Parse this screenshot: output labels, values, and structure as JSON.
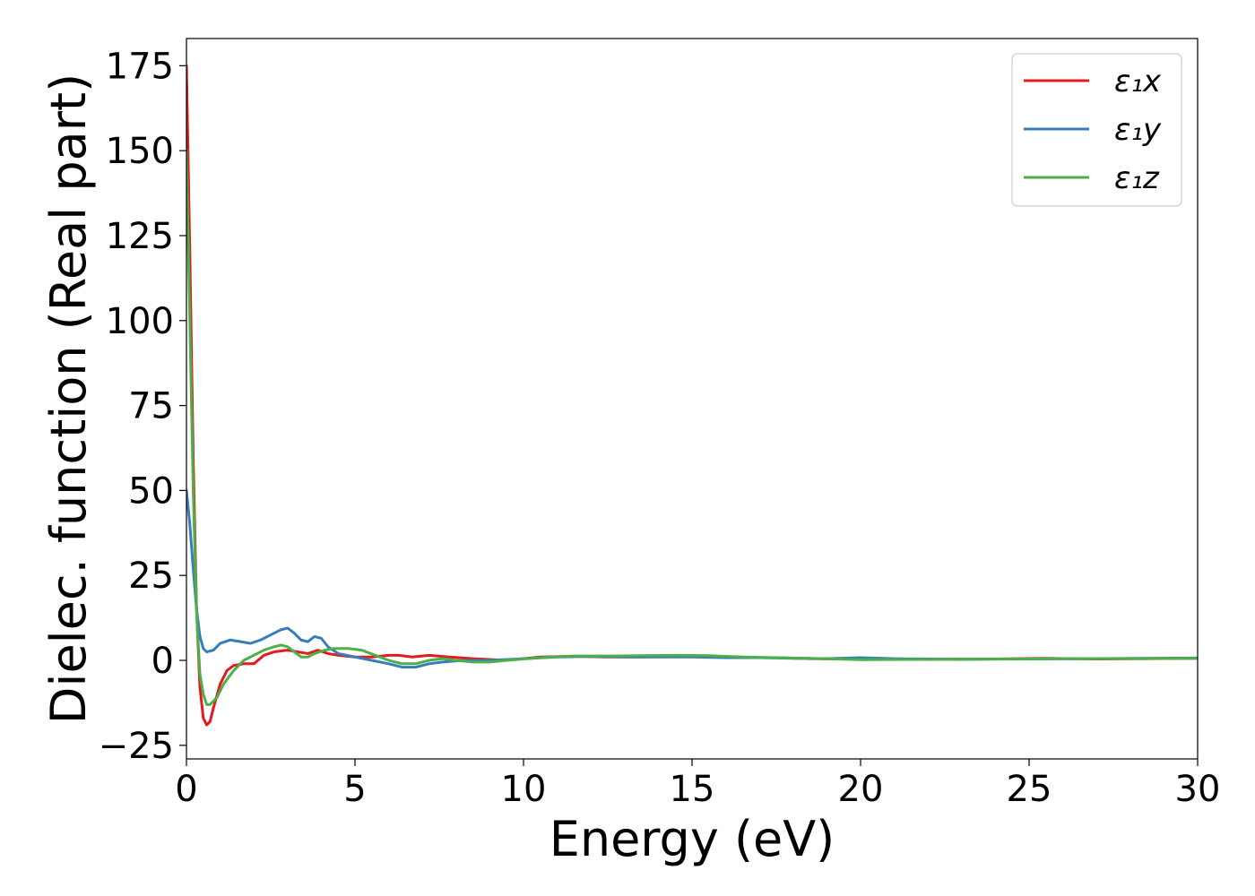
{
  "chart_data": {
    "type": "line",
    "title": "",
    "xlabel": "Energy (eV)",
    "ylabel": "Dielec. function (Real part)",
    "xlim": [
      0,
      30
    ],
    "ylim": [
      -29,
      183
    ],
    "xticks": [
      0,
      5,
      10,
      15,
      20,
      25,
      30
    ],
    "yticks": [
      -25,
      0,
      25,
      50,
      75,
      100,
      125,
      150,
      175
    ],
    "ytick_labels": [
      "−25",
      "0",
      "25",
      "50",
      "75",
      "100",
      "125",
      "150",
      "175"
    ],
    "grid": false,
    "legend_position": "top-right",
    "series": [
      {
        "name": "ε₁x",
        "color": "#e41a1c",
        "points": [
          [
            0.0,
            175
          ],
          [
            0.1,
            120
          ],
          [
            0.2,
            60
          ],
          [
            0.3,
            15
          ],
          [
            0.4,
            -8
          ],
          [
            0.5,
            -17
          ],
          [
            0.6,
            -19
          ],
          [
            0.7,
            -18
          ],
          [
            0.8,
            -14
          ],
          [
            1.0,
            -7
          ],
          [
            1.2,
            -3
          ],
          [
            1.4,
            -1.5
          ],
          [
            1.7,
            -1
          ],
          [
            2.0,
            -1
          ],
          [
            2.3,
            1.5
          ],
          [
            2.6,
            2.5
          ],
          [
            3.0,
            3
          ],
          [
            3.3,
            2.5
          ],
          [
            3.6,
            2
          ],
          [
            3.9,
            3
          ],
          [
            4.2,
            2
          ],
          [
            4.5,
            1.5
          ],
          [
            5.0,
            1
          ],
          [
            5.5,
            1
          ],
          [
            6.0,
            1.5
          ],
          [
            6.3,
            1.5
          ],
          [
            6.7,
            1
          ],
          [
            7.2,
            1.5
          ],
          [
            7.8,
            1
          ],
          [
            8.5,
            0.5
          ],
          [
            9.5,
            0
          ],
          [
            10.5,
            1
          ],
          [
            11.5,
            1.2
          ],
          [
            12.5,
            1
          ],
          [
            13.5,
            1
          ],
          [
            14.5,
            1.2
          ],
          [
            15.5,
            1.2
          ],
          [
            16.5,
            0.8
          ],
          [
            17.5,
            0.8
          ],
          [
            18.5,
            0.5
          ],
          [
            20,
            0.4
          ],
          [
            22,
            0.3
          ],
          [
            24,
            0.4
          ],
          [
            25.5,
            0.6
          ],
          [
            27,
            0.4
          ],
          [
            28.5,
            0.5
          ],
          [
            30,
            0.6
          ]
        ]
      },
      {
        "name": "ε₁y",
        "color": "#377eb8",
        "points": [
          [
            0.0,
            50
          ],
          [
            0.1,
            40
          ],
          [
            0.2,
            27
          ],
          [
            0.3,
            15
          ],
          [
            0.4,
            7
          ],
          [
            0.5,
            3.5
          ],
          [
            0.6,
            2.5
          ],
          [
            0.8,
            3
          ],
          [
            1.0,
            5
          ],
          [
            1.3,
            6
          ],
          [
            1.6,
            5.5
          ],
          [
            1.9,
            5
          ],
          [
            2.2,
            6
          ],
          [
            2.5,
            7.5
          ],
          [
            2.8,
            9
          ],
          [
            3.0,
            9.5
          ],
          [
            3.2,
            8
          ],
          [
            3.4,
            6
          ],
          [
            3.6,
            5.5
          ],
          [
            3.8,
            7
          ],
          [
            4.0,
            6.5
          ],
          [
            4.2,
            4
          ],
          [
            4.5,
            2
          ],
          [
            5.0,
            1
          ],
          [
            5.5,
            0
          ],
          [
            6.0,
            -1
          ],
          [
            6.4,
            -2
          ],
          [
            6.8,
            -2
          ],
          [
            7.2,
            -1
          ],
          [
            7.6,
            -0.5
          ],
          [
            8.2,
            0
          ],
          [
            9.0,
            0
          ],
          [
            10,
            0.5
          ],
          [
            11,
            1
          ],
          [
            12,
            1.2
          ],
          [
            13,
            1
          ],
          [
            14,
            1
          ],
          [
            15,
            1
          ],
          [
            16,
            0.8
          ],
          [
            17,
            0.8
          ],
          [
            18,
            0.6
          ],
          [
            19,
            0.5
          ],
          [
            20,
            0.8
          ],
          [
            21,
            0.5
          ],
          [
            23,
            0.3
          ],
          [
            25,
            0.4
          ],
          [
            27,
            0.5
          ],
          [
            30,
            0.7
          ]
        ]
      },
      {
        "name": "ε₁z",
        "color": "#4daf4a",
        "points": [
          [
            0.0,
            150
          ],
          [
            0.1,
            100
          ],
          [
            0.2,
            50
          ],
          [
            0.3,
            14
          ],
          [
            0.4,
            -4
          ],
          [
            0.5,
            -10
          ],
          [
            0.6,
            -13
          ],
          [
            0.7,
            -13
          ],
          [
            0.9,
            -11
          ],
          [
            1.1,
            -7
          ],
          [
            1.4,
            -3
          ],
          [
            1.7,
            0
          ],
          [
            2.0,
            1.5
          ],
          [
            2.3,
            3
          ],
          [
            2.6,
            4
          ],
          [
            2.8,
            4.5
          ],
          [
            3.0,
            4
          ],
          [
            3.2,
            2.5
          ],
          [
            3.4,
            1
          ],
          [
            3.6,
            1
          ],
          [
            3.8,
            2
          ],
          [
            4.1,
            3
          ],
          [
            4.4,
            3.5
          ],
          [
            4.8,
            3.5
          ],
          [
            5.2,
            3
          ],
          [
            5.6,
            1.5
          ],
          [
            6.0,
            0
          ],
          [
            6.4,
            -1
          ],
          [
            6.8,
            -1
          ],
          [
            7.2,
            0
          ],
          [
            7.6,
            0.5
          ],
          [
            8.0,
            0
          ],
          [
            8.5,
            -0.5
          ],
          [
            9.0,
            -0.5
          ],
          [
            9.5,
            0
          ],
          [
            10.5,
            0.8
          ],
          [
            11.5,
            1.3
          ],
          [
            12.5,
            1.3
          ],
          [
            13.5,
            1.4
          ],
          [
            14.5,
            1.5
          ],
          [
            15.5,
            1.4
          ],
          [
            16.5,
            1
          ],
          [
            17.5,
            0.8
          ],
          [
            18.5,
            0.6
          ],
          [
            20,
            0.2
          ],
          [
            22,
            0.3
          ],
          [
            24,
            0.4
          ],
          [
            26,
            0.5
          ],
          [
            28,
            0.5
          ],
          [
            30,
            0.6
          ]
        ]
      }
    ]
  }
}
